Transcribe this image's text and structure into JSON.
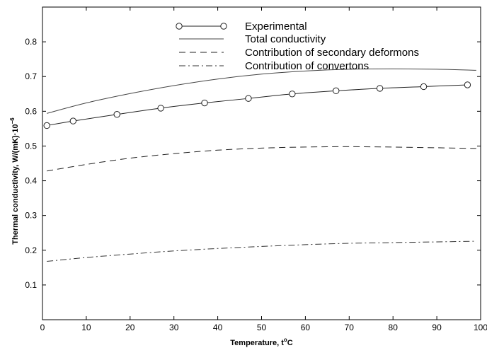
{
  "chart_data": {
    "type": "line",
    "xlabel": "Temperature, t",
    "xlabel_sup": "o",
    "xlabel_suffix": "C",
    "ylabel": "Thermal conductivity, W/(mK)·10",
    "ylabel_sup": "−6",
    "xlim": [
      0,
      100
    ],
    "ylim": [
      0,
      0.9
    ],
    "x_ticks": [
      0,
      10,
      20,
      30,
      40,
      50,
      60,
      70,
      80,
      90,
      100
    ],
    "x_tick_labels": [
      "0",
      "10",
      "20",
      "30",
      "40",
      "50",
      "60",
      "70",
      "80",
      "90",
      "100"
    ],
    "y_ticks": [
      0.1,
      0.2,
      0.3,
      0.4,
      0.5,
      0.6,
      0.7,
      0.8
    ],
    "y_tick_labels": [
      "0.1",
      "0.2",
      "0.3",
      "0.4",
      "0.5",
      "0.6",
      "0.7",
      "0.8"
    ],
    "grid": false,
    "legend_position": "top-center",
    "series": [
      {
        "name": "Experimental",
        "style": "line-circle",
        "color": "#000000",
        "x": [
          1,
          7,
          17,
          27,
          37,
          47,
          57,
          67,
          77,
          87,
          97
        ],
        "y": [
          0.559,
          0.572,
          0.591,
          0.609,
          0.624,
          0.637,
          0.65,
          0.659,
          0.666,
          0.671,
          0.676
        ]
      },
      {
        "name": "Total conductivity",
        "style": "solid",
        "color": "#000000",
        "x": [
          1,
          10,
          20,
          30,
          40,
          50,
          60,
          70,
          80,
          90,
          99
        ],
        "y": [
          0.594,
          0.624,
          0.651,
          0.674,
          0.693,
          0.707,
          0.716,
          0.721,
          0.722,
          0.721,
          0.718
        ]
      },
      {
        "name": "Contribution of secondary deformons",
        "style": "dashed",
        "color": "#000000",
        "x": [
          1,
          10,
          20,
          30,
          40,
          50,
          60,
          70,
          80,
          90,
          99
        ],
        "y": [
          0.428,
          0.447,
          0.465,
          0.478,
          0.488,
          0.494,
          0.497,
          0.498,
          0.497,
          0.495,
          0.493
        ]
      },
      {
        "name": "Contribution of convertons",
        "style": "dashdot",
        "color": "#000000",
        "x": [
          1,
          10,
          20,
          30,
          40,
          50,
          60,
          70,
          80,
          90,
          99
        ],
        "y": [
          0.168,
          0.179,
          0.189,
          0.198,
          0.205,
          0.211,
          0.216,
          0.22,
          0.222,
          0.224,
          0.226
        ]
      }
    ]
  }
}
